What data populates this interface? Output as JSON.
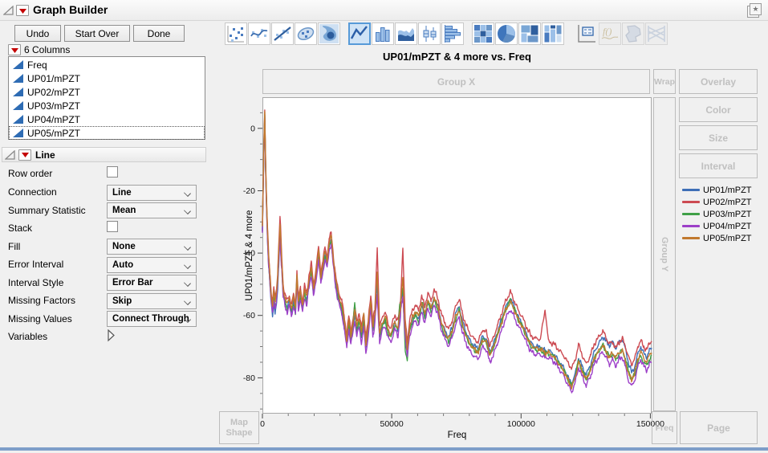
{
  "window": {
    "title": "Graph Builder"
  },
  "toolbar_buttons": {
    "undo": "Undo",
    "start_over": "Start Over",
    "done": "Done"
  },
  "columns_panel": {
    "header": "6 Columns",
    "items": [
      "Freq",
      "UP01/mPZT",
      "UP02/mPZT",
      "UP03/mPZT",
      "UP04/mPZT",
      "UP05/mPZT"
    ],
    "selected_item": "UP05/mPZT"
  },
  "line_panel": {
    "title": "Line",
    "rows": [
      {
        "label": "Row order",
        "type": "checkbox",
        "checked": false
      },
      {
        "label": "Connection",
        "type": "select",
        "value": "Line"
      },
      {
        "label": "Summary Statistic",
        "type": "select",
        "value": "Mean"
      },
      {
        "label": "Stack",
        "type": "checkbox",
        "checked": false
      },
      {
        "label": "Fill",
        "type": "select",
        "value": "None"
      },
      {
        "label": "Error Interval",
        "type": "select",
        "value": "Auto"
      },
      {
        "label": "Interval Style",
        "type": "select",
        "value": "Error Bar"
      },
      {
        "label": "Missing Factors",
        "type": "select",
        "value": "Skip"
      },
      {
        "label": "Missing Values",
        "type": "select",
        "value": "Connect Through"
      },
      {
        "label": "Variables",
        "type": "disclosure"
      }
    ]
  },
  "element_palette": {
    "selected": "line"
  },
  "drop_zones": {
    "group_x": "Group X",
    "wrap": "Wrap",
    "overlay": "Overlay",
    "color": "Color",
    "size": "Size",
    "interval": "Interval",
    "group_y": "Group Y",
    "map_shape": "Map Shape",
    "freq": "Freq",
    "page": "Page"
  },
  "chart_data": {
    "type": "line",
    "title": "UP01/mPZT & 4 more vs. Freq",
    "xlabel": "Freq",
    "ylabel": "UP01/mPZT & 4 more",
    "xlim": [
      0,
      150500
    ],
    "ylim": [
      -91.5,
      10
    ],
    "x_ticks": [
      0,
      50000,
      100000,
      150000
    ],
    "x_minor_step": 10000,
    "y_ticks": [
      0,
      -20,
      -40,
      -60,
      -80
    ],
    "y_minor_step": 5,
    "grid": false,
    "legend_position": "right",
    "noise": {
      "amp": 0.9,
      "low_x_amp": 0.3,
      "low_x_cutoff": 2000
    },
    "base_points": [
      [
        0,
        -32
      ],
      [
        300,
        -18
      ],
      [
        600,
        -5
      ],
      [
        900,
        5
      ],
      [
        1200,
        -10
      ],
      [
        1600,
        -24
      ],
      [
        2000,
        -34
      ],
      [
        2400,
        -42
      ],
      [
        2900,
        -48
      ],
      [
        3400,
        -54
      ],
      [
        3900,
        -57
      ],
      [
        4400,
        -53
      ],
      [
        4900,
        -56
      ],
      [
        5400,
        -54
      ],
      [
        5900,
        -48
      ],
      [
        6300,
        -40
      ],
      [
        6800,
        -30
      ],
      [
        7300,
        -40
      ],
      [
        7700,
        -47
      ],
      [
        8000,
        -52
      ],
      [
        8800,
        -55
      ],
      [
        9600,
        -57
      ],
      [
        10400,
        -55
      ],
      [
        11200,
        -58
      ],
      [
        12000,
        -55
      ],
      [
        12800,
        -58
      ],
      [
        13350,
        -47
      ],
      [
        13900,
        -56
      ],
      [
        14700,
        -53
      ],
      [
        15500,
        -57
      ],
      [
        16300,
        -52
      ],
      [
        17100,
        -55
      ],
      [
        18000,
        -49
      ],
      [
        18900,
        -45
      ],
      [
        19800,
        -52
      ],
      [
        20700,
        -47
      ],
      [
        21700,
        -40
      ],
      [
        22600,
        -48
      ],
      [
        23400,
        -44
      ],
      [
        24200,
        -40
      ],
      [
        25000,
        -43
      ],
      [
        25800,
        -37
      ],
      [
        26600,
        -35
      ],
      [
        27400,
        -42
      ],
      [
        28200,
        -48
      ],
      [
        28900,
        -52
      ],
      [
        29800,
        -55
      ],
      [
        30700,
        -57
      ],
      [
        31600,
        -62
      ],
      [
        32600,
        -68
      ],
      [
        33400,
        -62
      ],
      [
        34200,
        -67
      ],
      [
        35000,
        -63
      ],
      [
        35700,
        -59
      ],
      [
        36500,
        -64
      ],
      [
        37400,
        -61
      ],
      [
        38300,
        -66
      ],
      [
        39200,
        -61
      ],
      [
        40000,
        -69
      ],
      [
        40900,
        -64
      ],
      [
        41900,
        -55
      ],
      [
        42700,
        -64
      ],
      [
        43500,
        -60
      ],
      [
        44400,
        -41
      ],
      [
        45300,
        -66
      ],
      [
        46500,
        -62
      ],
      [
        47500,
        -61
      ],
      [
        48700,
        -65
      ],
      [
        49700,
        -66
      ],
      [
        51200,
        -62
      ],
      [
        52400,
        -64
      ],
      [
        53400,
        -58
      ],
      [
        54300,
        -41
      ],
      [
        55200,
        -64
      ],
      [
        56000,
        -71
      ],
      [
        56900,
        -64
      ],
      [
        58000,
        -61
      ],
      [
        59200,
        -59
      ],
      [
        60400,
        -61
      ],
      [
        61600,
        -56
      ],
      [
        62800,
        -60
      ],
      [
        64000,
        -55
      ],
      [
        65200,
        -58
      ],
      [
        66400,
        -54
      ],
      [
        67800,
        -57
      ],
      [
        69200,
        -62
      ],
      [
        70600,
        -65
      ],
      [
        72000,
        -67
      ],
      [
        73400,
        -64
      ],
      [
        74600,
        -60
      ],
      [
        76100,
        -57
      ],
      [
        77300,
        -62
      ],
      [
        78500,
        -65
      ],
      [
        80000,
        -68
      ],
      [
        81800,
        -70
      ],
      [
        83400,
        -71
      ],
      [
        85200,
        -67
      ],
      [
        86600,
        -68
      ],
      [
        87900,
        -72
      ],
      [
        89200,
        -70
      ],
      [
        90800,
        -66
      ],
      [
        92400,
        -62
      ],
      [
        94000,
        -58
      ],
      [
        95900,
        -55
      ],
      [
        97500,
        -58
      ],
      [
        99000,
        -61
      ],
      [
        100500,
        -63
      ],
      [
        102000,
        -66
      ],
      [
        103800,
        -69
      ],
      [
        105600,
        -70
      ],
      [
        107400,
        -70
      ],
      [
        109200,
        -71
      ],
      [
        111000,
        -71
      ],
      [
        112800,
        -72
      ],
      [
        114600,
        -74
      ],
      [
        116400,
        -76
      ],
      [
        118200,
        -79
      ],
      [
        119600,
        -81
      ],
      [
        121000,
        -78
      ],
      [
        122200,
        -73
      ],
      [
        123600,
        -76
      ],
      [
        125200,
        -79
      ],
      [
        126800,
        -76
      ],
      [
        128400,
        -72
      ],
      [
        130000,
        -70
      ],
      [
        131600,
        -68
      ],
      [
        132800,
        -70
      ],
      [
        134200,
        -72
      ],
      [
        135400,
        -71
      ],
      [
        136600,
        -73
      ],
      [
        138000,
        -71
      ],
      [
        139200,
        -70
      ],
      [
        140400,
        -73
      ],
      [
        141600,
        -77
      ],
      [
        142800,
        -79
      ],
      [
        144000,
        -77
      ],
      [
        145200,
        -73
      ],
      [
        146300,
        -71
      ],
      [
        147400,
        -73
      ],
      [
        148600,
        -74
      ],
      [
        149600,
        -72
      ],
      [
        150500,
        -71
      ]
    ],
    "series": [
      {
        "name": "UP01/mPZT",
        "color": "#3E6FB7",
        "offsets": [
          [
            0,
            -1
          ],
          [
            6800,
            -4
          ],
          [
            7600,
            -0.5
          ],
          [
            20000,
            -0.5
          ],
          [
            43600,
            -0.5
          ],
          [
            44400,
            -9
          ],
          [
            45200,
            -0.5
          ],
          [
            53500,
            -0.5
          ],
          [
            54300,
            -11
          ],
          [
            55200,
            -0.5
          ],
          [
            70000,
            0
          ],
          [
            90000,
            0.5
          ],
          [
            95900,
            0.5
          ],
          [
            105000,
            0
          ],
          [
            119600,
            -1
          ],
          [
            126000,
            0
          ],
          [
            131000,
            1
          ],
          [
            134500,
            2.5
          ],
          [
            137500,
            2.5
          ],
          [
            141000,
            2
          ],
          [
            143000,
            0.5
          ],
          [
            146300,
            1
          ],
          [
            150500,
            0.5
          ]
        ]
      },
      {
        "name": "UP02/mPZT",
        "color": "#CC4A52",
        "offsets": [
          [
            0,
            1
          ],
          [
            6800,
            2
          ],
          [
            10000,
            1.5
          ],
          [
            21700,
            2
          ],
          [
            26600,
            1.5
          ],
          [
            35000,
            2
          ],
          [
            43600,
            2
          ],
          [
            44400,
            3.5
          ],
          [
            45200,
            2
          ],
          [
            50000,
            2
          ],
          [
            53500,
            2.5
          ],
          [
            54300,
            3
          ],
          [
            55200,
            2.5
          ],
          [
            60000,
            2.5
          ],
          [
            76100,
            2.5
          ],
          [
            86000,
            2.5
          ],
          [
            95900,
            2.5
          ],
          [
            100000,
            2.5
          ],
          [
            107500,
            2.5
          ],
          [
            109300,
            13
          ],
          [
            110600,
            2.5
          ],
          [
            115000,
            3
          ],
          [
            119600,
            4
          ],
          [
            123000,
            3.5
          ],
          [
            128000,
            3
          ],
          [
            132300,
            3
          ],
          [
            136000,
            2.5
          ],
          [
            139200,
            2.5
          ],
          [
            141600,
            3.5
          ],
          [
            146300,
            3
          ],
          [
            150500,
            3
          ]
        ]
      },
      {
        "name": "UP03/mPZT",
        "color": "#3FA047",
        "offsets": [
          [
            0,
            -0.5
          ],
          [
            6300,
            -1
          ],
          [
            6800,
            -5
          ],
          [
            7600,
            -1
          ],
          [
            30000,
            -1
          ],
          [
            35000,
            -1
          ],
          [
            35700,
            3
          ],
          [
            36500,
            -1
          ],
          [
            43600,
            -1
          ],
          [
            44400,
            -12
          ],
          [
            45200,
            -1
          ],
          [
            52400,
            -1
          ],
          [
            53100,
            4
          ],
          [
            53700,
            -1
          ],
          [
            54300,
            -11
          ],
          [
            55600,
            -5
          ],
          [
            56500,
            -1
          ],
          [
            61500,
            -1
          ],
          [
            62000,
            1.5
          ],
          [
            62600,
            -0.5
          ],
          [
            70600,
            -1.5
          ],
          [
            90000,
            -0.5
          ],
          [
            95900,
            0
          ],
          [
            105000,
            -1
          ],
          [
            119600,
            -1.5
          ],
          [
            130000,
            -1.5
          ],
          [
            141600,
            -1
          ],
          [
            144000,
            -2
          ],
          [
            150500,
            -2
          ]
        ]
      },
      {
        "name": "UP04/mPZT",
        "color": "#9C3FC8",
        "offsets": [
          [
            0,
            -1.5
          ],
          [
            6300,
            -2
          ],
          [
            6800,
            -5
          ],
          [
            7600,
            -2
          ],
          [
            30000,
            -2
          ],
          [
            39800,
            -3
          ],
          [
            43600,
            -2.5
          ],
          [
            44400,
            -13
          ],
          [
            45200,
            -2.5
          ],
          [
            53500,
            -2.5
          ],
          [
            54300,
            -13
          ],
          [
            55200,
            -2.5
          ],
          [
            70000,
            -2.5
          ],
          [
            76100,
            -3.5
          ],
          [
            83000,
            -3
          ],
          [
            95900,
            -3
          ],
          [
            100000,
            -2.5
          ],
          [
            110000,
            -2.5
          ],
          [
            119600,
            -3.5
          ],
          [
            126000,
            -3.5
          ],
          [
            134000,
            -3.5
          ],
          [
            138000,
            -3
          ],
          [
            141600,
            -4
          ],
          [
            144500,
            -3.5
          ],
          [
            146300,
            -3
          ],
          [
            150500,
            -4
          ]
        ]
      },
      {
        "name": "UP05/mPZT",
        "color": "#C1792E",
        "offsets": [
          [
            0,
            0.5
          ],
          [
            6300,
            0.5
          ],
          [
            6800,
            -1
          ],
          [
            7600,
            0.5
          ],
          [
            30000,
            0.5
          ],
          [
            38800,
            0.5
          ],
          [
            39200,
            2
          ],
          [
            40000,
            0
          ],
          [
            43600,
            0.5
          ],
          [
            44400,
            -5
          ],
          [
            45200,
            0
          ],
          [
            47000,
            0
          ],
          [
            47500,
            1.5
          ],
          [
            48200,
            0
          ],
          [
            53500,
            0
          ],
          [
            54300,
            -6
          ],
          [
            55200,
            0
          ],
          [
            60000,
            0.5
          ],
          [
            76100,
            -1
          ],
          [
            90000,
            -0.5
          ],
          [
            95900,
            -0.5
          ],
          [
            105000,
            -0.5
          ],
          [
            119600,
            -2
          ],
          [
            127000,
            -1.5
          ],
          [
            134200,
            -1.5
          ],
          [
            136600,
            -0.5
          ],
          [
            141600,
            -2
          ],
          [
            146300,
            -0.5
          ],
          [
            149000,
            -1
          ],
          [
            150500,
            -0.5
          ]
        ]
      }
    ]
  }
}
